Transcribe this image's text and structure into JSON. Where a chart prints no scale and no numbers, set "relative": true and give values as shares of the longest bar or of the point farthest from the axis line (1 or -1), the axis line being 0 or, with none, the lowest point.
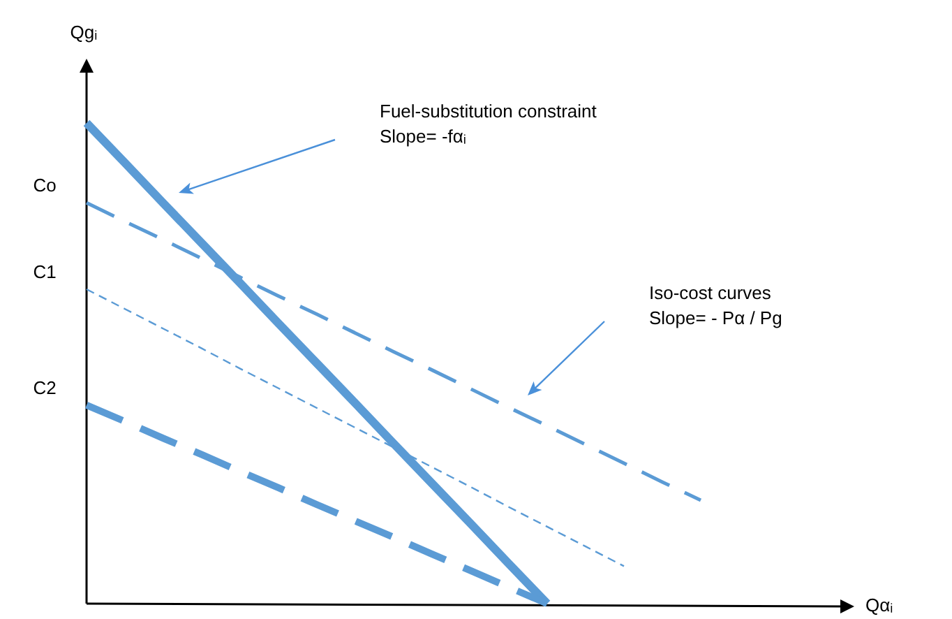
{
  "chart_data": {
    "type": "line",
    "relative": true,
    "xlabel": "Qαᵢ",
    "ylabel": "Qgᵢ",
    "categories": [
      null,
      null,
      null,
      null,
      null,
      null,
      null,
      null,
      null,
      null,
      null,
      null,
      null,
      null,
      null,
      null,
      null,
      null,
      null,
      null,
      null
    ],
    "series": [
      {
        "color": "#5b9bd5",
        "line_style": "solid",
        "values": [
          1,
          0.917,
          0.833,
          0.75,
          0.667,
          0.583,
          0.5,
          0.417,
          0.333,
          0.25,
          0.167,
          0.083,
          0,
          null,
          null,
          null,
          null,
          null,
          null,
          null,
          null
        ]
      },
      {
        "color": "#5b9bd5",
        "line_style": "dashed",
        "values": [
          0.834,
          0.795,
          0.757,
          0.718,
          0.679,
          0.64,
          0.602,
          0.563,
          0.524,
          0.486,
          0.447,
          0.408,
          0.37,
          0.331,
          0.292,
          0.253,
          0.215,
          null,
          null,
          null,
          null
        ]
      },
      {
        "color": "#5b9bd5",
        "line_style": "dashed",
        "values": [
          0.654,
          0.613,
          0.572,
          0.531,
          0.489,
          0.448,
          0.407,
          0.366,
          0.325,
          0.284,
          0.243,
          0.201,
          0.16,
          0.119,
          0.078,
          null,
          null,
          null,
          null,
          null,
          null
        ]
      },
      {
        "color": "#5b9bd5",
        "line_style": "dashed",
        "values": [
          0.413,
          0.379,
          0.344,
          0.31,
          0.275,
          0.241,
          0.206,
          0.172,
          0.138,
          0.103,
          0.069,
          0.034,
          0,
          null,
          null,
          null,
          null,
          null,
          null,
          null,
          null
        ]
      }
    ],
    "annotations": [
      "Co",
      "C1",
      "C2",
      "Fuel-substitution constraint\nSlope= -fαᵢ",
      "Iso-cost curves\nSlope= - Pα / Pg"
    ]
  }
}
